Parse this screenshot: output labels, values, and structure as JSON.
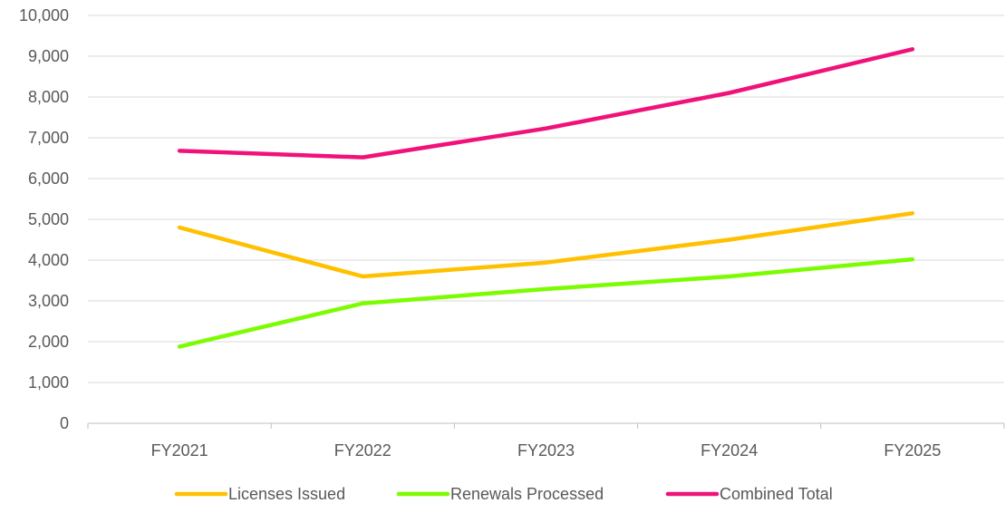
{
  "chart_data": {
    "type": "line",
    "title": "",
    "xlabel": "",
    "ylabel": "",
    "categories": [
      "FY2021",
      "FY2022",
      "FY2023",
      "FY2024",
      "FY2025"
    ],
    "ylim": [
      0,
      10000
    ],
    "yticks": [
      0,
      1000,
      2000,
      3000,
      4000,
      5000,
      6000,
      7000,
      8000,
      9000,
      10000
    ],
    "ytick_labels": [
      "0",
      "1,000",
      "2,000",
      "3,000",
      "4,000",
      "5,000",
      "6,000",
      "7,000",
      "8,000",
      "9,000",
      "10,000"
    ],
    "grid": true,
    "legend_position": "bottom",
    "series": [
      {
        "name": "Licenses Issued",
        "color": "#FFC000",
        "values": [
          4800,
          3600,
          3940,
          4500,
          5150
        ]
      },
      {
        "name": "Renewals Processed",
        "color": "#7CFC00",
        "values": [
          1880,
          2940,
          3290,
          3600,
          4020
        ]
      },
      {
        "name": "Combined Total",
        "color": "#F0127A",
        "values": [
          6680,
          6520,
          7230,
          8100,
          9170
        ]
      }
    ]
  },
  "colors": {
    "grid": "#D9D9D9",
    "axis": "#BFBFBF",
    "text": "#595959"
  }
}
